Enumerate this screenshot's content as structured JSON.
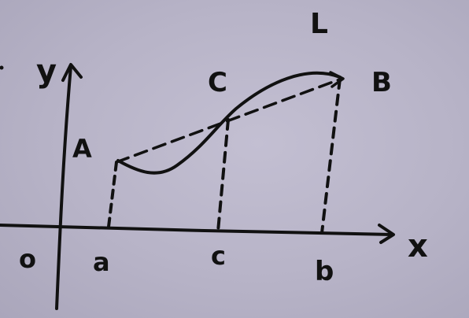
{
  "labels": {
    "y_axis": "y",
    "x_axis": "x",
    "origin": "o",
    "point_A": "A",
    "point_B": "B",
    "point_C": "C",
    "curve_L": "L",
    "tick_a": "a",
    "tick_c": "c",
    "tick_b": "b"
  },
  "colors": {
    "board": "#b8b4c8",
    "ink": "#111111"
  }
}
